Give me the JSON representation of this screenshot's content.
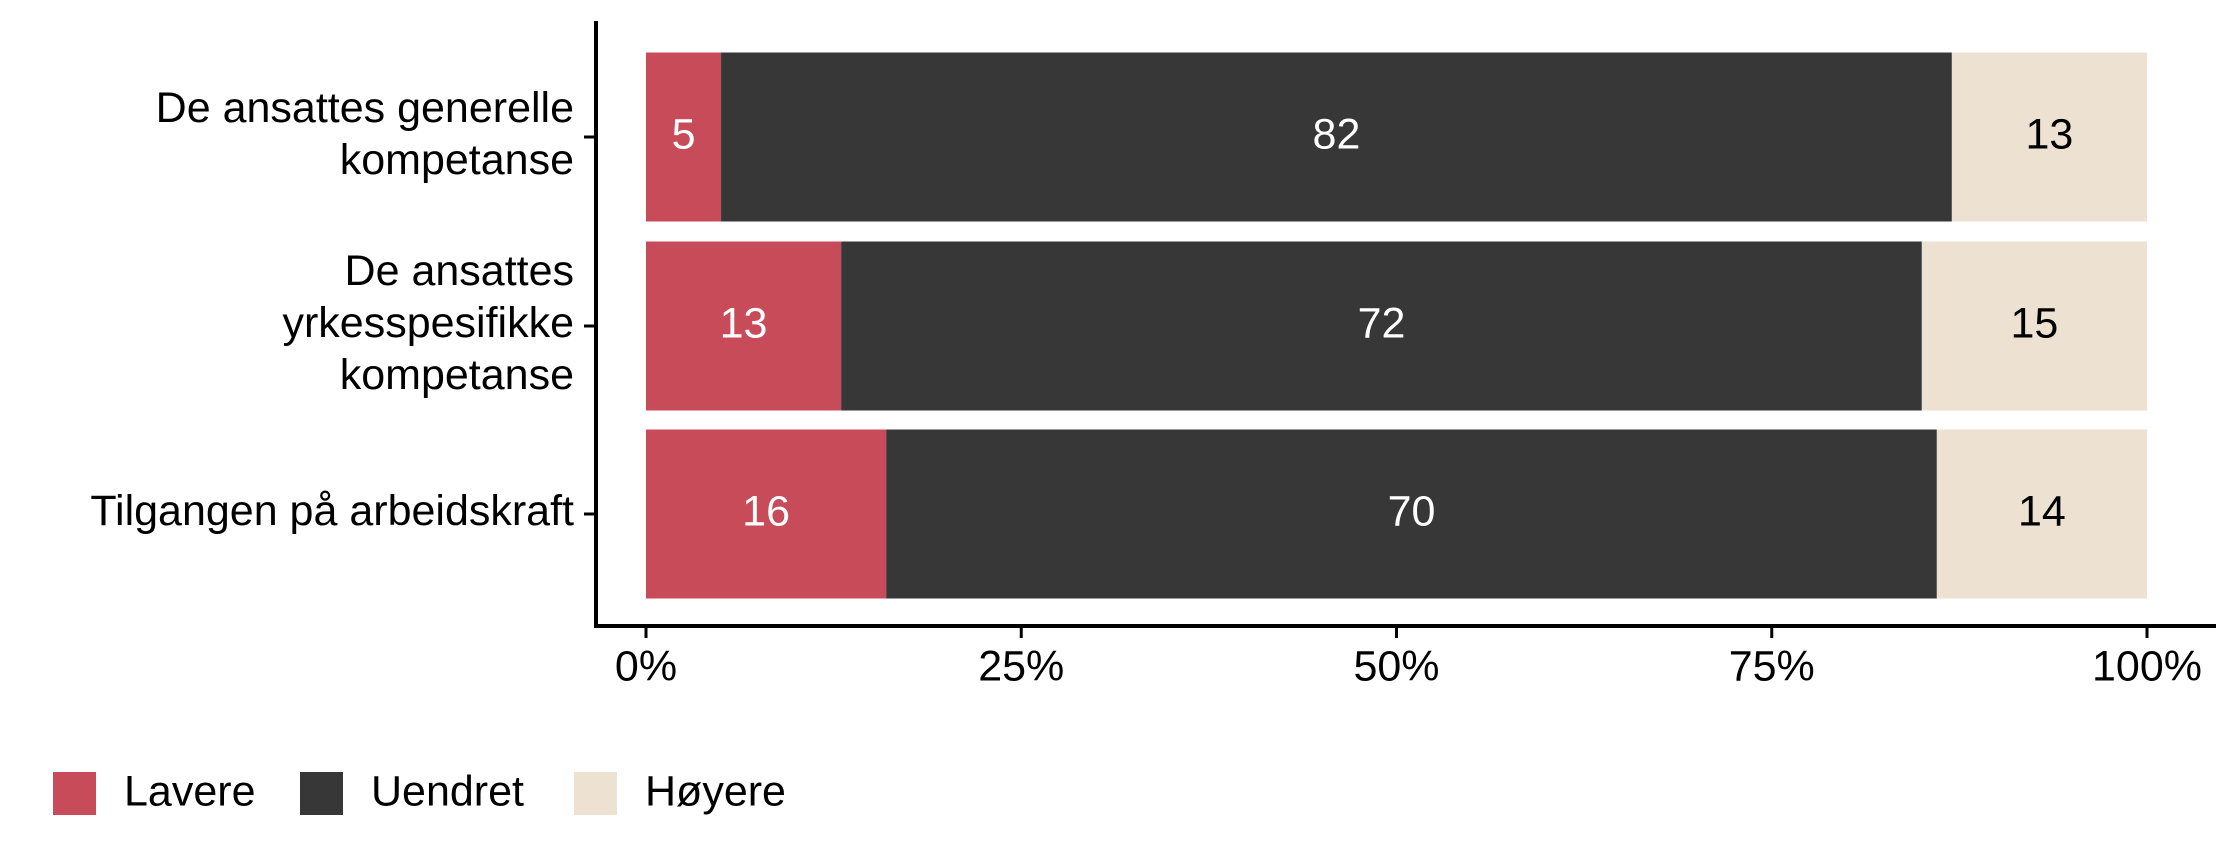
{
  "chart_data": {
    "type": "stacked-bar-horizontal",
    "categories": [
      "De ansattes generelle\nkompetanse",
      "De ansattes\nyrkesspesifikke\nkompetanse",
      "Tilgangen på arbeidskraft"
    ],
    "series": [
      {
        "name": "Lavere",
        "color": "#c84b5a",
        "values": [
          5,
          13,
          16
        ]
      },
      {
        "name": "Uendret",
        "color": "#373737",
        "values": [
          82,
          72,
          70
        ]
      },
      {
        "name": "Høyere",
        "color": "#ede1d1",
        "values": [
          13,
          15,
          14
        ]
      }
    ],
    "xlim": [
      0,
      100
    ],
    "xticks": [
      {
        "value": 0,
        "label": "0%"
      },
      {
        "value": 25,
        "label": "25%"
      },
      {
        "value": 50,
        "label": "50%"
      },
      {
        "value": 75,
        "label": "75%"
      },
      {
        "value": 100,
        "label": "100%"
      }
    ],
    "legend": "bottom-left"
  }
}
